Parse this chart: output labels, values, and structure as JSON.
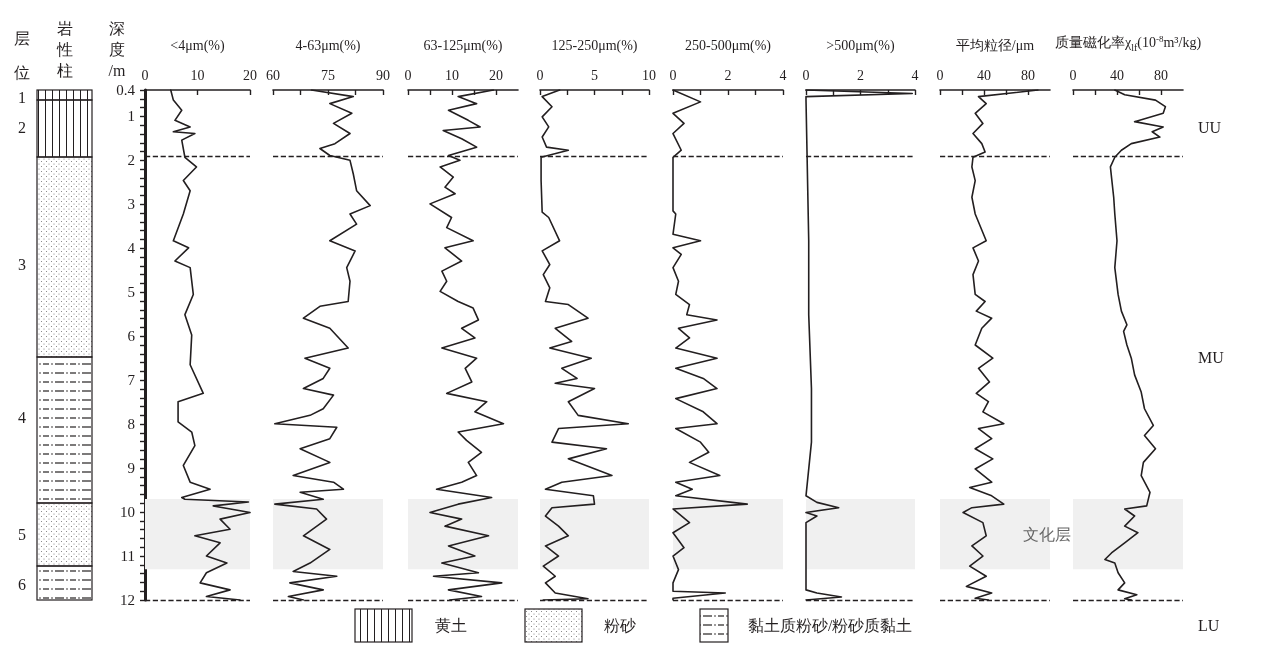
{
  "chart_data": [
    {
      "type": "line",
      "xlabel": "<4μm(%)",
      "ylabel": "深度/m",
      "xlim": [
        0,
        20
      ],
      "xticks": [
        0,
        10,
        20
      ],
      "ylim": [
        12,
        0.4
      ],
      "yticks": [
        0.4,
        {
          "value": 0.6,
          "label": null
        },
        {
          "value": 0.8,
          "label": null
        },
        1,
        {
          "value": 1.2,
          "label": null
        },
        {
          "value": 1.4,
          "label": null
        },
        {
          "value": 1.6,
          "label": null
        },
        {
          "value": 1.8,
          "label": null
        },
        2,
        {
          "value": 2.2,
          "label": null
        },
        {
          "value": 2.4,
          "label": null
        },
        {
          "value": 2.6,
          "label": null
        },
        {
          "value": 2.8,
          "label": null
        },
        3,
        {
          "value": 3.2,
          "label": null
        },
        {
          "value": 3.4,
          "label": null
        },
        {
          "value": 3.6,
          "label": null
        },
        {
          "value": 3.8,
          "label": null
        },
        4,
        {
          "value": 4.2,
          "label": null
        },
        {
          "value": 4.4,
          "label": null
        },
        {
          "value": 4.6,
          "label": null
        },
        {
          "value": 4.8,
          "label": null
        },
        5,
        {
          "value": 5.2,
          "label": null
        },
        {
          "value": 5.4,
          "label": null
        },
        {
          "value": 5.6,
          "label": null
        },
        {
          "value": 5.8,
          "label": null
        },
        6,
        {
          "value": 6.2,
          "label": null
        },
        {
          "value": 6.4,
          "label": null
        },
        {
          "value": 6.6,
          "label": null
        },
        {
          "value": 6.8,
          "label": null
        },
        7,
        {
          "value": 7.2,
          "label": null
        },
        {
          "value": 7.4,
          "label": null
        },
        {
          "value": 7.6,
          "label": null
        },
        {
          "value": 7.8,
          "label": null
        },
        8,
        {
          "value": 8.2,
          "label": null
        },
        {
          "value": 8.4,
          "label": null
        },
        {
          "value": 8.6,
          "label": null
        },
        {
          "value": 8.8,
          "label": null
        },
        9,
        {
          "value": 9.2,
          "label": null
        },
        {
          "value": 9.4,
          "label": null
        },
        {
          "value": 9.6,
          "label": null
        },
        {
          "value": 9.8,
          "label": null
        },
        10,
        {
          "value": 10.2,
          "label": null
        },
        {
          "value": 10.4,
          "label": null
        },
        {
          "value": 10.6,
          "label": null
        },
        {
          "value": 10.8,
          "label": null
        },
        11,
        {
          "value": 11.2,
          "label": null
        },
        {
          "value": 11.4,
          "label": null
        },
        {
          "value": 11.6,
          "label": null
        },
        {
          "value": 11.8,
          "label": null
        },
        12
      ],
      "series": [
        {
          "color": "#231f20",
          "x": [
            4.9,
            5.4,
            7.0,
            5.7,
            8.6,
            5.4,
            9.5,
            7.0,
            7.6,
            9.8,
            7.3,
            8.6,
            7.3,
            5.4,
            8.3,
            5.7,
            8.6,
            9.2,
            7.6,
            8.9,
            8.6,
            11.1,
            6.3,
            6.3,
            8.9,
            9.5,
            7.3,
            8.6,
            12.4,
            7.0,
            7.6,
            19.7,
            13.0,
            20.0,
            14.3,
            16.2,
            9.5,
            14.3,
            11.7,
            15.6,
            11.7,
            10.5,
            16.2,
            11.7,
            18.1
          ],
          "values": [
            0.4,
            0.63,
            0.86,
            1.09,
            1.24,
            1.35,
            1.39,
            1.54,
            1.93,
            2.15,
            2.46,
            2.69,
            3.22,
            3.83,
            3.99,
            4.29,
            4.44,
            5.05,
            5.51,
            5.97,
            6.65,
            7.3,
            7.49,
            7.95,
            8.18,
            8.49,
            8.94,
            9.32,
            9.48,
            9.67,
            9.71,
            9.77,
            9.86,
            10.01,
            10.16,
            10.39,
            10.54,
            10.7,
            11.0,
            11.16,
            11.38,
            11.61,
            11.77,
            11.92,
            12.0
          ]
        }
      ],
      "bands": [
        {
          "axis": "y",
          "from": 9.7,
          "to": 11.3,
          "color": "#f0f0f0"
        }
      ],
      "ref_lines": [
        {
          "axis": "y",
          "value": 1.9,
          "line_style": "dashed"
        },
        {
          "axis": "y",
          "value": 12.0,
          "line_style": "dashed"
        }
      ],
      "annotations": [
        "层位",
        "岩性柱",
        "1",
        "2",
        "3",
        "4",
        "5",
        "6",
        "黄土",
        "粉砂",
        "黏土质粉砂/粉砂质黏土"
      ]
    },
    {
      "type": "line",
      "xlabel": "4-63μm(%)",
      "xlim": [
        60,
        90
      ],
      "xticks": [
        60,
        {
          "value": 67.5,
          "label": null
        },
        75,
        {
          "value": 82.5,
          "label": null
        },
        90
      ],
      "ylim": [
        12,
        0.4
      ],
      "tick_labels": "x",
      "series": [
        {
          "color": "#231f20",
          "x": [
            70.5,
            81.9,
            75.5,
            81.5,
            76.5,
            81.0,
            76.9,
            72.8,
            75.5,
            81.0,
            81.9,
            82.8,
            86.5,
            81.0,
            82.8,
            75.5,
            82.4,
            80.1,
            81.0,
            80.5,
            72.8,
            68.3,
            75.5,
            80.5,
            68.7,
            75.5,
            73.7,
            68.3,
            76.5,
            73.7,
            70.1,
            60.5,
            77.4,
            75.5,
            67.4,
            75.5,
            65.5,
            76.5,
            79.2,
            67.4,
            73.7,
            60.5,
            71.9,
            74.6,
            68.3,
            75.5,
            70.1,
            65.5,
            77.4,
            64.6,
            73.7,
            64.2,
            68.3
          ],
          "values": [
            0.4,
            0.55,
            0.71,
            0.93,
            1.16,
            1.39,
            1.62,
            1.73,
            1.89,
            2.0,
            2.31,
            2.69,
            3.03,
            3.22,
            3.45,
            3.83,
            4.06,
            4.44,
            4.75,
            5.21,
            5.32,
            5.59,
            5.82,
            6.27,
            6.5,
            6.73,
            6.96,
            7.19,
            7.34,
            7.65,
            7.8,
            7.99,
            8.07,
            8.33,
            8.56,
            8.87,
            9.17,
            9.32,
            9.48,
            9.55,
            9.71,
            9.82,
            9.93,
            10.16,
            10.54,
            10.85,
            11.16,
            11.35,
            11.46,
            11.61,
            11.77,
            11.92,
            12.0
          ]
        }
      ],
      "bands": [
        {
          "axis": "y",
          "from": 9.7,
          "to": 11.3,
          "color": "#f0f0f0"
        }
      ],
      "ref_lines": [
        {
          "axis": "y",
          "value": 1.9,
          "line_style": "dashed"
        },
        {
          "axis": "y",
          "value": 12.0,
          "line_style": "dashed"
        }
      ]
    },
    {
      "type": "line",
      "xlabel": "63-125μm(%)",
      "xlim": [
        0,
        25
      ],
      "xticks": [
        0,
        {
          "value": 5,
          "label": null
        },
        10,
        {
          "value": 15,
          "label": null
        },
        20
      ],
      "ylim": [
        12,
        0.4
      ],
      "tick_labels": "x",
      "series": [
        {
          "color": "#231f20",
          "x": [
            19.4,
            11.4,
            15.6,
            9.2,
            13.7,
            16.4,
            8.0,
            12.2,
            15.6,
            9.2,
            11.8,
            7.3,
            10.3,
            8.4,
            10.7,
            5.0,
            9.9,
            8.8,
            14.8,
            8.4,
            12.2,
            7.7,
            8.8,
            7.3,
            11.4,
            14.8,
            16.0,
            12.2,
            15.2,
            7.7,
            15.6,
            13.0,
            14.5,
            8.8,
            17.9,
            15.2,
            21.7,
            11.4,
            13.3,
            16.7,
            13.7,
            15.6,
            12.2,
            6.5,
            19.0,
            11.4,
            5.0,
            12.2,
            8.4,
            18.3,
            9.2,
            15.2,
            7.7,
            16.0,
            5.8,
            21.3,
            9.2,
            16.7,
            9.5
          ],
          "values": [
            0.4,
            0.55,
            0.71,
            0.86,
            1.09,
            1.24,
            1.32,
            1.51,
            1.7,
            1.89,
            2.0,
            2.15,
            2.38,
            2.61,
            2.76,
            2.99,
            3.3,
            3.53,
            3.83,
            3.99,
            4.29,
            4.52,
            4.75,
            4.98,
            5.21,
            5.36,
            5.63,
            5.82,
            6.04,
            6.27,
            6.5,
            6.73,
            7.04,
            7.3,
            7.49,
            7.72,
            7.99,
            8.18,
            8.37,
            8.64,
            8.87,
            9.17,
            9.32,
            9.48,
            9.67,
            9.82,
            10.01,
            10.16,
            10.32,
            10.54,
            10.77,
            11.0,
            11.16,
            11.38,
            11.46,
            11.61,
            11.77,
            11.92,
            12.0
          ]
        }
      ],
      "bands": [
        {
          "axis": "y",
          "from": 9.7,
          "to": 11.3,
          "color": "#f0f0f0"
        }
      ],
      "ref_lines": [
        {
          "axis": "y",
          "value": 1.9,
          "line_style": "dashed"
        },
        {
          "axis": "y",
          "value": 12.0,
          "line_style": "dashed"
        }
      ]
    },
    {
      "type": "line",
      "xlabel": "125-250μm(%)",
      "xlim": [
        0,
        10
      ],
      "xticks": [
        0,
        {
          "value": 2.5,
          "label": null
        },
        5,
        {
          "value": 7.5,
          "label": null
        },
        10
      ],
      "ylim": [
        12,
        0.4
      ],
      "tick_labels": "x",
      "series": [
        {
          "color": "#231f20",
          "x": [
            1.8,
            0.2,
            1.1,
            0.2,
            0.8,
            0.2,
            0.6,
            2.6,
            0.1,
            0.1,
            0.1,
            0.2,
            0.8,
            1.8,
            0.2,
            0.9,
            0.3,
            0.9,
            0.5,
            2.6,
            4.4,
            1.4,
            2.9,
            0.9,
            4.7,
            2.0,
            3.4,
            1.4,
            5.0,
            2.6,
            3.5,
            8.1,
            1.7,
            1.1,
            6.1,
            2.6,
            6.6,
            2.0,
            0.5,
            4.9,
            5.0,
            1.1,
            0.5,
            1.7,
            2.6,
            0.5,
            1.7,
            0.3,
            1.4,
            0.5,
            1.4,
            4.4,
            0.3
          ],
          "values": [
            0.4,
            0.55,
            0.78,
            1.01,
            1.24,
            1.47,
            1.7,
            1.77,
            1.93,
            2.15,
            2.46,
            3.18,
            3.3,
            3.83,
            4.06,
            4.37,
            4.6,
            4.9,
            5.21,
            5.28,
            5.59,
            5.82,
            6.12,
            6.27,
            6.5,
            6.73,
            6.96,
            7.07,
            7.19,
            7.49,
            7.8,
            7.99,
            8.1,
            8.41,
            8.56,
            8.79,
            9.17,
            9.32,
            9.48,
            9.63,
            9.82,
            9.9,
            10.09,
            10.32,
            10.54,
            10.77,
            11.0,
            11.23,
            11.46,
            11.61,
            11.84,
            11.97,
            12.0
          ]
        }
      ],
      "bands": [
        {
          "axis": "y",
          "from": 9.7,
          "to": 11.3,
          "color": "#f0f0f0"
        }
      ],
      "ref_lines": [
        {
          "axis": "y",
          "value": 1.9,
          "line_style": "dashed"
        },
        {
          "axis": "y",
          "value": 12.0,
          "line_style": "dashed"
        }
      ]
    },
    {
      "type": "line",
      "xlabel": "250-500μm(%)",
      "xlim": [
        0,
        4
      ],
      "xticks": [
        0,
        {
          "value": 1,
          "label": null
        },
        2,
        {
          "value": 3,
          "label": null
        },
        4
      ],
      "ylim": [
        12,
        0.4
      ],
      "tick_labels": "x",
      "series": [
        {
          "color": "#231f20",
          "x": [
            0,
            1.0,
            0,
            0.4,
            0,
            0.3,
            0,
            0,
            0,
            0.1,
            0,
            1.0,
            0,
            0.3,
            0,
            0.2,
            0.1,
            0.6,
            0.5,
            1.6,
            0.2,
            0.6,
            0.1,
            1.6,
            0.1,
            1.1,
            1.6,
            0.1,
            1.1,
            1.6,
            0.1,
            1.0,
            1.3,
            0.6,
            1.7,
            0.1,
            0.7,
            0.1,
            2.7,
            0,
            0.6,
            0,
            0.4,
            0,
            0.2,
            0,
            0,
            1.9,
            0,
            0
          ],
          "values": [
            0.4,
            0.67,
            0.93,
            1.16,
            1.39,
            1.77,
            1.93,
            2.46,
            3.15,
            3.22,
            3.68,
            3.83,
            3.99,
            4.14,
            4.44,
            4.75,
            5.05,
            5.28,
            5.51,
            5.63,
            5.82,
            6.04,
            6.27,
            6.5,
            6.73,
            6.96,
            7.19,
            7.42,
            7.72,
            7.99,
            8.1,
            8.41,
            8.64,
            8.87,
            9.17,
            9.32,
            9.48,
            9.63,
            9.82,
            9.93,
            10.24,
            10.47,
            10.81,
            11.0,
            11.31,
            11.61,
            11.8,
            11.84,
            11.96,
            12.0
          ]
        }
      ],
      "bands": [
        {
          "axis": "y",
          "from": 9.7,
          "to": 11.3,
          "color": "#f0f0f0"
        }
      ],
      "ref_lines": [
        {
          "axis": "y",
          "value": 1.9,
          "line_style": "dashed"
        },
        {
          "axis": "y",
          "value": 12.0,
          "line_style": "dashed"
        }
      ]
    },
    {
      "type": "line",
      "xlabel": ">500μm(%)",
      "xlim": [
        0,
        4
      ],
      "xticks": [
        0,
        {
          "value": 1,
          "label": null
        },
        2,
        {
          "value": 3,
          "label": null
        },
        4
      ],
      "ylim": [
        12,
        0.4
      ],
      "tick_labels": "x",
      "series": [
        {
          "color": "#231f20",
          "x": [
            0,
            3.9,
            0,
            0,
            0.1,
            0.1,
            0.2,
            0.2,
            0,
            0.4,
            1.2,
            0,
            0.4,
            0,
            0,
            0.4,
            1.3,
            0
          ],
          "values": [
            0.4,
            0.48,
            0.55,
            0.63,
            3.83,
            5.51,
            7.19,
            8.41,
            9.63,
            9.78,
            9.9,
            10.01,
            10.09,
            10.24,
            11.77,
            11.84,
            11.93,
            12.0
          ]
        }
      ],
      "bands": [
        {
          "axis": "y",
          "from": 9.7,
          "to": 11.3,
          "color": "#f0f0f0"
        }
      ],
      "ref_lines": [
        {
          "axis": "y",
          "value": 1.9,
          "line_style": "dashed"
        },
        {
          "axis": "y",
          "value": 12.0,
          "line_style": "dashed"
        }
      ]
    },
    {
      "type": "line",
      "xlabel": "平均粒径/μm",
      "xlim": [
        0,
        100
      ],
      "xticks": [
        0,
        {
          "value": 20,
          "label": null
        },
        40,
        {
          "value": 60,
          "label": null
        },
        80
      ],
      "ylim": [
        12,
        0.4
      ],
      "tick_labels": "x",
      "series": [
        {
          "color": "#231f20",
          "x": [
            89,
            35,
            42,
            32,
            39,
            30,
            38,
            41,
            30,
            29,
            32,
            29,
            32,
            42,
            30,
            35,
            30,
            32,
            41,
            33,
            47,
            38,
            32,
            48,
            35,
            45,
            33,
            44,
            39,
            58,
            35,
            47,
            32,
            48,
            32,
            47,
            27,
            47,
            58,
            29,
            21,
            39,
            42,
            29,
            39,
            27,
            42,
            24,
            47,
            32,
            44
          ],
          "values": [
            0.4,
            0.55,
            0.71,
            0.93,
            1.16,
            1.39,
            1.62,
            1.81,
            1.93,
            2.15,
            2.46,
            2.84,
            3.22,
            3.83,
            3.99,
            4.29,
            4.6,
            5.05,
            5.21,
            5.43,
            5.59,
            5.82,
            6.2,
            6.5,
            6.73,
            7.04,
            7.3,
            7.49,
            7.72,
            7.99,
            8.1,
            8.33,
            8.56,
            8.79,
            9.02,
            9.32,
            9.44,
            9.63,
            9.82,
            9.9,
            10.01,
            10.24,
            10.54,
            10.77,
            11.0,
            11.23,
            11.46,
            11.69,
            11.84,
            11.96,
            12.0
          ]
        }
      ],
      "bands": [
        {
          "axis": "y",
          "from": 9.7,
          "to": 11.3,
          "color": "#f0f0f0"
        }
      ],
      "ref_lines": [
        {
          "axis": "y",
          "value": 1.9,
          "line_style": "dashed"
        },
        {
          "axis": "y",
          "value": 12.0,
          "line_style": "dashed"
        }
      ]
    },
    {
      "type": "line",
      "xlabel": "质量磁化率χ$_{lf}$(10$^{-8}$m³/kg)",
      "xlim": [
        0,
        100
      ],
      "xticks": [
        0,
        {
          "value": 20,
          "label": null
        },
        40,
        {
          "value": 60,
          "label": null
        },
        80
      ],
      "ylim": [
        12,
        0.4
      ],
      "tick_labels": "x",
      "series": [
        {
          "color": "#231f20",
          "x": [
            38,
            47,
            75,
            84,
            82,
            56,
            82,
            72,
            79,
            53,
            44,
            38,
            34,
            35,
            37,
            38,
            40,
            38,
            41,
            44,
            49,
            46,
            49,
            53,
            56,
            62,
            65,
            73,
            65,
            75,
            64,
            62,
            70,
            67,
            47,
            56,
            47,
            59,
            47,
            35,
            29,
            38,
            41,
            47,
            41,
            58,
            47,
            53
          ],
          "values": [
            0.4,
            0.51,
            0.63,
            0.78,
            0.93,
            1.12,
            1.24,
            1.35,
            1.47,
            1.62,
            1.77,
            1.93,
            2.15,
            2.38,
            2.84,
            3.22,
            3.83,
            4.44,
            5.05,
            5.43,
            5.74,
            5.89,
            6.2,
            6.5,
            6.88,
            7.27,
            7.65,
            8.03,
            8.26,
            8.56,
            8.87,
            9.17,
            9.55,
            9.86,
            9.93,
            10.09,
            10.32,
            10.47,
            10.7,
            10.93,
            11.08,
            11.16,
            11.38,
            11.61,
            11.77,
            11.88,
            11.97,
            12.0
          ]
        }
      ],
      "bands": [
        {
          "axis": "y",
          "from": 9.7,
          "to": 11.3,
          "color": "#f0f0f0",
          "label": "文化层"
        }
      ],
      "ref_lines": [
        {
          "axis": "y",
          "value": 1.9,
          "line_style": "dashed"
        },
        {
          "axis": "y",
          "value": 12.0,
          "line_style": "dashed"
        }
      ],
      "annotations": [
        "UU",
        "MU",
        "LU"
      ]
    }
  ]
}
